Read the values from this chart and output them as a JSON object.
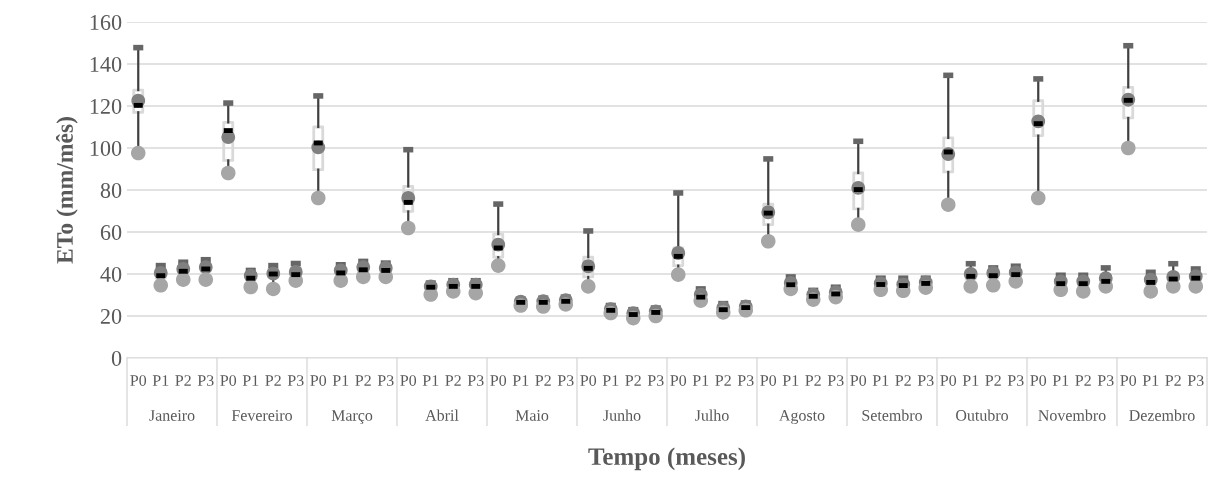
{
  "chart_data": {
    "type": "box",
    "xlabel": "Tempo (meses)",
    "ylabel": "ETo (mm/mês)",
    "categories": [
      "P0",
      "P1",
      "P2",
      "P3",
      "P0",
      "P1",
      "P2",
      "P3",
      "P0",
      "P1",
      "P2",
      "P3",
      "P0",
      "P1",
      "P2",
      "P3",
      "P0",
      "P1",
      "P2",
      "P3",
      "P0",
      "P1",
      "P2",
      "P3",
      "P0",
      "P1",
      "P2",
      "P3",
      "P0",
      "P1",
      "P2",
      "P3",
      "P0",
      "P1",
      "P2",
      "P3",
      "P0",
      "P1",
      "P2",
      "P3",
      "P0",
      "P1",
      "P2",
      "P3",
      "P0",
      "P1",
      "P2",
      "P3"
    ],
    "annotations": [
      "Janeiro",
      "Fevereiro",
      "Março",
      "Abril",
      "Maio",
      "Junho",
      "Julho",
      "Agosto",
      "Setembro",
      "Outubro",
      "Novembro",
      "Dezembro"
    ],
    "series": [
      {
        "type": "scatter",
        "color": "#a6a6a6",
        "marker": "circle",
        "values": [
          97.6,
          34.6,
          37.3,
          37.3,
          88.1,
          33.8,
          32.9,
          36.8,
          76.2,
          36.8,
          38.6,
          38.6,
          61.9,
          30.2,
          31.7,
          30.9,
          44,
          25,
          24.5,
          25.5,
          34.1,
          21.4,
          19,
          20,
          39.7,
          27.3,
          21.7,
          22.7,
          55.6,
          32.9,
          27.8,
          29,
          63.5,
          32.5,
          32,
          33.5,
          73,
          34.1,
          34.6,
          36.5,
          76.2,
          32.5,
          31.7,
          34.1,
          100,
          31.7,
          34.1,
          34.1
        ]
      }
    ],
    "ylim": [
      0,
      160
    ],
    "yticks": [
      0,
      20,
      40,
      60,
      80,
      100,
      120,
      140,
      160
    ],
    "grid": "y",
    "boxes": [
      {
        "low": 97.6,
        "q1": 117,
        "median": 120.3,
        "q3": 127.6,
        "high": 147.8,
        "mean": 122.5
      },
      {
        "low": 34.6,
        "q1": 38,
        "median": 39.2,
        "q3": 42.4,
        "high": 44,
        "mean": 40.5
      },
      {
        "low": 37.3,
        "q1": 40,
        "median": 41.3,
        "q3": 43.7,
        "high": 45.6,
        "mean": 42.4
      },
      {
        "low": 37.3,
        "q1": 41.3,
        "median": 42.4,
        "q3": 44.4,
        "high": 46.8,
        "mean": 43.3
      },
      {
        "low": 88.1,
        "q1": 94.1,
        "median": 108.3,
        "q3": 112.2,
        "high": 121.4,
        "mean": 105.2
      },
      {
        "low": 33.8,
        "q1": 37.3,
        "median": 38,
        "q3": 40.5,
        "high": 41.7,
        "mean": 39.2
      },
      {
        "low": 32.9,
        "q1": 38.6,
        "median": 40,
        "q3": 42.4,
        "high": 44,
        "mean": 40.2
      },
      {
        "low": 36.8,
        "q1": 38.6,
        "median": 39.7,
        "q3": 42.9,
        "high": 45,
        "mean": 41
      },
      {
        "low": 76.2,
        "q1": 89.7,
        "median": 102.4,
        "q3": 110,
        "high": 124.8,
        "mean": 100.3
      },
      {
        "low": 36.8,
        "q1": 39.7,
        "median": 40.5,
        "q3": 42.9,
        "high": 44.4,
        "mean": 41.7
      },
      {
        "low": 38.6,
        "q1": 40.8,
        "median": 42,
        "q3": 44.4,
        "high": 46,
        "mean": 43.3
      },
      {
        "low": 38.6,
        "q1": 40.5,
        "median": 41.7,
        "q3": 43.7,
        "high": 45.2,
        "mean": 42.9
      },
      {
        "low": 61.9,
        "q1": 69.8,
        "median": 74.1,
        "q3": 81.7,
        "high": 99.2,
        "mean": 76.2
      },
      {
        "low": 30.2,
        "q1": 32.9,
        "median": 33.7,
        "q3": 34.8,
        "high": 35.7,
        "mean": 34.1
      },
      {
        "low": 31.7,
        "q1": 33.3,
        "median": 34.1,
        "q3": 35.7,
        "high": 36.8,
        "mean": 34.9
      },
      {
        "low": 30.9,
        "q1": 33.3,
        "median": 34.1,
        "q3": 35.7,
        "high": 36.8,
        "mean": 34.9
      },
      {
        "low": 44,
        "q1": 48,
        "median": 52.4,
        "q3": 59,
        "high": 73.3,
        "mean": 54
      },
      {
        "low": 25,
        "q1": 26,
        "median": 26.5,
        "q3": 27.3,
        "high": 28,
        "mean": 26.8
      },
      {
        "low": 24.5,
        "q1": 26,
        "median": 26.5,
        "q3": 27.5,
        "high": 28.5,
        "mean": 27
      },
      {
        "low": 25.5,
        "q1": 26.5,
        "median": 27,
        "q3": 28,
        "high": 29,
        "mean": 27.5
      },
      {
        "low": 34.1,
        "q1": 38.6,
        "median": 42.7,
        "q3": 48,
        "high": 60.5,
        "mean": 43.7
      },
      {
        "low": 21.4,
        "q1": 22,
        "median": 22.7,
        "q3": 24.3,
        "high": 25,
        "mean": 23.3
      },
      {
        "low": 19,
        "q1": 20,
        "median": 20.7,
        "q3": 22,
        "high": 23,
        "mean": 21.3
      },
      {
        "low": 20,
        "q1": 21,
        "median": 21.7,
        "q3": 23,
        "high": 23.8,
        "mean": 22.2
      },
      {
        "low": 39.7,
        "q1": 44,
        "median": 48.4,
        "q3": 52.4,
        "high": 78.6,
        "mean": 50
      },
      {
        "low": 27.3,
        "q1": 28,
        "median": 29,
        "q3": 31.7,
        "high": 32.9,
        "mean": 30.2
      },
      {
        "low": 21.7,
        "q1": 22.2,
        "median": 23,
        "q3": 24.9,
        "high": 25.9,
        "mean": 23.8
      },
      {
        "low": 22.7,
        "q1": 23.3,
        "median": 24,
        "q3": 25.3,
        "high": 26.2,
        "mean": 24.5
      },
      {
        "low": 55.6,
        "q1": 63.5,
        "median": 69,
        "q3": 73.3,
        "high": 94.8,
        "mean": 69.4
      },
      {
        "low": 32.9,
        "q1": 34.1,
        "median": 34.9,
        "q3": 37.3,
        "high": 38.6,
        "mean": 35.7
      },
      {
        "low": 27.8,
        "q1": 28.6,
        "median": 29.4,
        "q3": 31.3,
        "high": 32.2,
        "mean": 30.2
      },
      {
        "low": 29,
        "q1": 29.7,
        "median": 30.5,
        "q3": 32.5,
        "high": 33.7,
        "mean": 31.3
      },
      {
        "low": 63.5,
        "q1": 71,
        "median": 80.2,
        "q3": 88.1,
        "high": 103.2,
        "mean": 81
      },
      {
        "low": 32.5,
        "q1": 34,
        "median": 35,
        "q3": 37,
        "high": 38,
        "mean": 35.5
      },
      {
        "low": 32,
        "q1": 34,
        "median": 34.5,
        "q3": 37,
        "high": 38,
        "mean": 35
      },
      {
        "low": 33.5,
        "q1": 35,
        "median": 35.5,
        "q3": 37,
        "high": 38,
        "mean": 36
      },
      {
        "low": 73,
        "q1": 88.6,
        "median": 98.1,
        "q3": 104.8,
        "high": 134.6,
        "mean": 97.1
      },
      {
        "low": 34.1,
        "q1": 37.6,
        "median": 38.9,
        "q3": 41.3,
        "high": 44.9,
        "mean": 40
      },
      {
        "low": 34.6,
        "q1": 38,
        "median": 39.2,
        "q3": 41.7,
        "high": 42.9,
        "mean": 40.5
      },
      {
        "low": 36.5,
        "q1": 38.6,
        "median": 39.7,
        "q3": 42,
        "high": 43.7,
        "mean": 40.8
      },
      {
        "low": 76.2,
        "q1": 105.9,
        "median": 111.6,
        "q3": 122.5,
        "high": 132.9,
        "mean": 112.7
      },
      {
        "low": 32.5,
        "q1": 34.4,
        "median": 35.4,
        "q3": 38,
        "high": 39.4,
        "mean": 36.5
      },
      {
        "low": 31.7,
        "q1": 34.4,
        "median": 35.4,
        "q3": 38,
        "high": 39.4,
        "mean": 36.5
      },
      {
        "low": 34.1,
        "q1": 35.4,
        "median": 36.5,
        "q3": 39.7,
        "high": 42.9,
        "mean": 38
      },
      {
        "low": 100,
        "q1": 114.3,
        "median": 122.7,
        "q3": 128.9,
        "high": 148.7,
        "mean": 123
      },
      {
        "low": 31.7,
        "q1": 34.9,
        "median": 36,
        "q3": 38.9,
        "high": 40.8,
        "mean": 37.3
      },
      {
        "low": 34.1,
        "q1": 36.5,
        "median": 37.6,
        "q3": 40.5,
        "high": 44.9,
        "mean": 38.6
      },
      {
        "low": 34.1,
        "q1": 36.9,
        "median": 38,
        "q3": 40.2,
        "high": 42.4,
        "mean": 38.9
      }
    ]
  }
}
